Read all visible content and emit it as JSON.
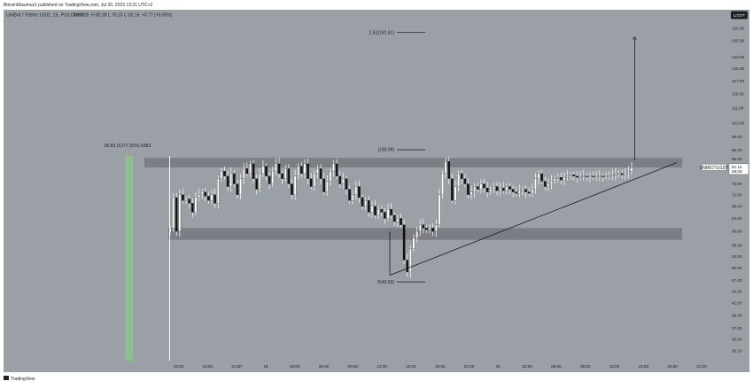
{
  "header": {
    "published_by": "BitcoinMaximus1 published on TradingView.com, Jul 20, 2023 13:21 UTC+2"
  },
  "footer": {
    "brand": "TradingView"
  },
  "colors": {
    "plot_bg": "#9aa0a6",
    "zone": "#7b7f85",
    "highlight": "#8fbf8a",
    "candle": "#ffffff",
    "text": "#222222"
  },
  "chart_data": {
    "type": "candlestick",
    "title": "UniBot / Tether USD, 15, POLONEX",
    "ohlc_readout": {
      "o_label": "O",
      "o": "80.95",
      "h_label": "H",
      "h": "82.39",
      "l_label": "L",
      "l": "79.23",
      "c_label": "C",
      "c": "82.16",
      "change": "+0.77 (+0.95%)"
    },
    "y_axis": {
      "scale": "log",
      "currency_label": "USDT",
      "ticks": [
        33.1,
        35,
        37,
        39.5,
        42,
        44.5,
        47,
        50,
        53,
        56,
        60,
        64,
        68,
        72,
        76,
        81,
        86,
        90,
        96,
        103,
        111,
        119,
        127,
        135,
        143,
        155,
        165,
        175
      ],
      "tick_labels": [
        "33.10",
        "35.00",
        "37.00",
        "39.50",
        "42.00",
        "44.50",
        "47.00",
        "50.00",
        "53.00",
        "56.00",
        "60.00",
        "64.00",
        "68.00",
        "72.00",
        "76.00",
        "81.00",
        "86.00",
        "90.00",
        "96.00",
        "103.00",
        "111.00",
        "119.00",
        "127.00",
        "135.00",
        "143.00",
        "155.00",
        "165.00",
        "175.00"
      ],
      "range": [
        31.5,
        181
      ]
    },
    "x_axis": {
      "ticks": [
        "15:00",
        "18:00",
        "21:00",
        "19",
        "03:00",
        "06:00",
        "09:00",
        "12:00",
        "15:00",
        "18:00",
        "21:00",
        "20",
        "03:00",
        "06:00",
        "09:00",
        "12:00",
        "15:00",
        "18:00",
        "21:00"
      ]
    },
    "price_label": {
      "symbol": "UNIBOTUSDT",
      "price": "82.16",
      "countdown": "08:08"
    },
    "zones": [
      {
        "price_low": 82.5,
        "price_high": 86.5
      },
      {
        "price_low": 57.5,
        "price_high": 61.0
      }
    ],
    "fib_levels": [
      {
        "label": "2.61(161.61)",
        "price": 161.61
      },
      {
        "label": "1(90.09)",
        "price": 90.09
      },
      {
        "label": "0(46.63)",
        "price": 46.63
      }
    ],
    "measure": {
      "label": "85.83 (1277.92%) 8383"
    },
    "series_close": [
      61.0,
      71.0,
      60.0,
      72.0,
      70.0,
      70.5,
      69.0,
      66.0,
      71.0,
      72.0,
      73.0,
      71.5,
      70.0,
      72.0,
      69.0,
      78.0,
      81.0,
      79.0,
      75.0,
      80.0,
      76.0,
      72.0,
      78.0,
      82.0,
      80.0,
      84.0,
      78.0,
      74.0,
      80.0,
      83.0,
      79.0,
      76.0,
      81.0,
      84.0,
      80.0,
      78.0,
      82.0,
      76.0,
      72.0,
      79.0,
      83.0,
      80.0,
      84.0,
      78.0,
      75.0,
      80.0,
      82.0,
      78.0,
      73.0,
      77.0,
      81.0,
      84.0,
      79.0,
      76.0,
      78.0,
      74.0,
      70.0,
      72.0,
      75.0,
      71.0,
      68.0,
      70.0,
      66.0,
      68.0,
      65.0,
      67.0,
      66.0,
      64.0,
      67.0,
      65.0,
      63.0,
      64.0,
      62.0,
      52.0,
      49.0,
      55.0,
      58.0,
      60.0,
      62.0,
      61.0,
      60.5,
      61.0,
      60.0,
      62.0,
      72.0,
      80.0,
      85.0,
      78.0,
      70.0,
      75.0,
      80.0,
      78.0,
      76.0,
      72.0,
      73.0,
      75.0,
      74.0,
      76.0,
      74.5,
      73.0,
      74.0,
      75.0,
      73.5,
      74.5,
      73.5,
      75.0,
      74.0,
      73.0,
      72.5,
      73.5,
      74.0,
      73.0,
      72.5,
      74.0,
      78.0,
      80.0,
      77.0,
      75.0,
      76.0,
      77.0,
      78.0,
      78.5,
      77.5,
      78.5,
      79.0,
      79.5,
      79.0,
      78.5,
      78.8,
      79.0,
      78.8,
      79.0,
      78.7,
      78.9,
      79.0,
      78.8,
      79.0,
      79.2,
      79.5,
      79.8,
      80.0,
      79.5,
      80.3,
      80.9,
      82.2
    ]
  }
}
